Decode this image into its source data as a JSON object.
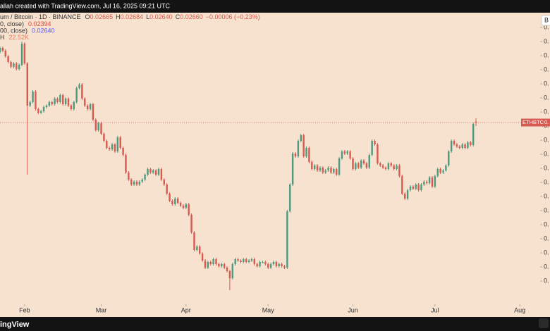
{
  "topbar": "allah created with TradingView.com, Jul 16, 2025 09:21 UTC",
  "legend": {
    "symbol": "um / Bitcoin · 1D · BINANCE",
    "ohlc": [
      {
        "label": "O",
        "value": "0.02665"
      },
      {
        "label": "H",
        "value": "0.02684"
      },
      {
        "label": "L",
        "value": "0.02640"
      },
      {
        "label": "C",
        "value": "0.02660"
      }
    ],
    "change": "−0.00006 (−0.23%)",
    "indicators": [
      {
        "name": "0, close)",
        "value": "0.02394",
        "color": "#e0463c"
      },
      {
        "name": "00, close)",
        "value": "0.02640",
        "color": "#5b5bf0"
      },
      {
        "name": "H",
        "value": "22.52K",
        "color": "#e8795a"
      }
    ]
  },
  "footer": "ingView",
  "chart_data": {
    "type": "candlestick",
    "up_color": "#4f9a7f",
    "down_color": "#d65a50",
    "currency_label": "B",
    "price_tag": "ETHBTC",
    "price_tag_value": "0.",
    "xlim": [
      0,
      192.8
    ],
    "xticks": [
      {
        "value": 9,
        "label": "Feb"
      },
      {
        "value": 37,
        "label": "Mar"
      },
      {
        "value": 68,
        "label": "Apr"
      },
      {
        "value": 98,
        "label": "May"
      },
      {
        "value": 129,
        "label": "Jun"
      },
      {
        "value": 159,
        "label": "Jul"
      },
      {
        "value": 190,
        "label": "Aug"
      }
    ],
    "ylim": [
      0.01628,
      0.03284
    ],
    "yticks": [
      {
        "value": 0.0176,
        "label": "0."
      },
      {
        "value": 0.0184,
        "label": "0."
      },
      {
        "value": 0.0192,
        "label": "0."
      },
      {
        "value": 0.02,
        "label": "0."
      },
      {
        "value": 0.0208,
        "label": "0."
      },
      {
        "value": 0.0216,
        "label": "0."
      },
      {
        "value": 0.0224,
        "label": "0."
      },
      {
        "value": 0.0232,
        "label": "0."
      },
      {
        "value": 0.024,
        "label": "0."
      },
      {
        "value": 0.0248,
        "label": "0."
      },
      {
        "value": 0.0256,
        "label": "0."
      },
      {
        "value": 0.0264,
        "label": "0."
      },
      {
        "value": 0.0272,
        "label": "0."
      },
      {
        "value": 0.028,
        "label": "0."
      },
      {
        "value": 0.0288,
        "label": "0."
      },
      {
        "value": 0.0296,
        "label": "0."
      },
      {
        "value": 0.0304,
        "label": "0."
      },
      {
        "value": 0.0312,
        "label": "0."
      },
      {
        "value": 0.032,
        "label": "0."
      }
    ],
    "open": [
      0.0306,
      0.03084,
      0.03068,
      0.03036,
      0.03004,
      0.02976,
      0.02996,
      0.02964,
      0.02988,
      0.03108,
      0.02996,
      0.02756,
      0.02776,
      0.02836,
      0.02736,
      0.02716,
      0.02724,
      0.02748,
      0.02756,
      0.02776,
      0.02764,
      0.02796,
      0.02776,
      0.02816,
      0.02764,
      0.02796,
      0.02756,
      0.02736,
      0.02776,
      0.02856,
      0.02876,
      0.02796,
      0.02756,
      0.02736,
      0.02764,
      0.02676,
      0.02616,
      0.02656,
      0.02596,
      0.02556,
      0.02516,
      0.02508,
      0.02536,
      0.02496,
      0.02576,
      0.02516,
      0.02476,
      0.02376,
      0.02336,
      0.02308,
      0.02324,
      0.02308,
      0.02324,
      0.02336,
      0.02364,
      0.02396,
      0.02376,
      0.02388,
      0.02364,
      0.02396,
      0.02336,
      0.02308,
      0.02256,
      0.02216,
      0.02196,
      0.02228,
      0.02204,
      0.02188,
      0.02176,
      0.02196,
      0.02136,
      0.02036,
      0.01936,
      0.01956,
      0.01916,
      0.01876,
      0.01836,
      0.01868,
      0.01856,
      0.01884,
      0.01856,
      0.01844,
      0.01856,
      0.01836,
      0.01816,
      0.01776,
      0.01856,
      0.01884,
      0.01876,
      0.01868,
      0.01884,
      0.01868,
      0.01876,
      0.01884,
      0.01856,
      0.01844,
      0.01868,
      0.01868,
      0.01856,
      0.01836,
      0.01856,
      0.01868,
      0.01844,
      0.01856,
      0.01844,
      0.01836,
      0.02156,
      0.02308,
      0.02484,
      0.02468,
      0.02556,
      0.02588,
      0.02468,
      0.02516,
      0.02436,
      0.02396,
      0.02416,
      0.02388,
      0.02404,
      0.02376,
      0.02388,
      0.02404,
      0.02376,
      0.02396,
      0.02364,
      0.02456,
      0.02496,
      0.02484,
      0.02496,
      0.02456,
      0.02396,
      0.02428,
      0.02404,
      0.02444,
      0.02428,
      0.02404,
      0.02476,
      0.02556,
      0.02536,
      0.02428,
      0.02416,
      0.02404,
      0.02396,
      0.02428,
      0.02416,
      0.02396,
      0.02416,
      0.02356,
      0.02256,
      0.02228,
      0.02276,
      0.02296,
      0.02284,
      0.02308,
      0.02276,
      0.02308,
      0.02324,
      0.02316,
      0.02348,
      0.02296,
      0.02356,
      0.02396,
      0.02376,
      0.02388,
      0.02416,
      0.02496,
      0.02556,
      0.02536,
      0.02524,
      0.02516,
      0.02536,
      0.02516,
      0.02548,
      0.02532,
      0.02665
    ],
    "high": [
      0.03092,
      0.03092,
      0.03076,
      0.03044,
      0.03012,
      0.03004,
      0.03004,
      0.02996,
      0.0312,
      0.03116,
      0.03004,
      0.02784,
      0.02844,
      0.02844,
      0.02744,
      0.02732,
      0.02756,
      0.02764,
      0.02784,
      0.02784,
      0.02804,
      0.02804,
      0.02824,
      0.02824,
      0.02804,
      0.02804,
      0.02764,
      0.02784,
      0.02864,
      0.02884,
      0.02884,
      0.02804,
      0.02764,
      0.02772,
      0.02772,
      0.02684,
      0.02664,
      0.02664,
      0.02604,
      0.02564,
      0.02524,
      0.02544,
      0.02544,
      0.02584,
      0.02584,
      0.02524,
      0.02484,
      0.02384,
      0.02344,
      0.02332,
      0.02332,
      0.02332,
      0.02344,
      0.02372,
      0.02404,
      0.02404,
      0.02396,
      0.02396,
      0.02404,
      0.02404,
      0.02344,
      0.02316,
      0.02264,
      0.02224,
      0.02236,
      0.02236,
      0.02212,
      0.02196,
      0.02204,
      0.02204,
      0.02144,
      0.02044,
      0.01964,
      0.01964,
      0.01924,
      0.01884,
      0.01876,
      0.01876,
      0.01892,
      0.01892,
      0.01864,
      0.01864,
      0.01864,
      0.01844,
      0.01824,
      0.01864,
      0.01892,
      0.01892,
      0.01884,
      0.01892,
      0.01892,
      0.01884,
      0.01892,
      0.01892,
      0.01864,
      0.01876,
      0.01876,
      0.01876,
      0.01864,
      0.01864,
      0.01876,
      0.01876,
      0.01864,
      0.01864,
      0.01852,
      0.02164,
      0.02316,
      0.02492,
      0.02492,
      0.02564,
      0.02596,
      0.02596,
      0.02524,
      0.02524,
      0.02444,
      0.02424,
      0.02424,
      0.02412,
      0.02412,
      0.02396,
      0.02412,
      0.02412,
      0.02404,
      0.02404,
      0.02464,
      0.02504,
      0.02504,
      0.02504,
      0.02504,
      0.02464,
      0.02436,
      0.02436,
      0.02452,
      0.02452,
      0.02436,
      0.02484,
      0.02564,
      0.02564,
      0.02544,
      0.02436,
      0.02424,
      0.02412,
      0.02436,
      0.02436,
      0.02424,
      0.02424,
      0.02424,
      0.02364,
      0.02264,
      0.02284,
      0.02304,
      0.02304,
      0.02316,
      0.02316,
      0.02316,
      0.02332,
      0.02332,
      0.02356,
      0.02356,
      0.02364,
      0.02404,
      0.02404,
      0.02396,
      0.02424,
      0.02504,
      0.02564,
      0.02564,
      0.02544,
      0.02532,
      0.02544,
      0.02544,
      0.02556,
      0.02556,
      0.0266,
      0.02684
    ],
    "low": [
      0.03052,
      0.0306,
      0.03028,
      0.02996,
      0.02968,
      0.02968,
      0.02956,
      0.02956,
      0.0298,
      0.02988,
      0.02364,
      0.02748,
      0.02768,
      0.02728,
      0.02708,
      0.02708,
      0.02716,
      0.0274,
      0.02748,
      0.02756,
      0.02756,
      0.02768,
      0.02768,
      0.02756,
      0.02756,
      0.02748,
      0.02728,
      0.02728,
      0.02768,
      0.02848,
      0.02788,
      0.02748,
      0.02728,
      0.02728,
      0.02668,
      0.02608,
      0.02608,
      0.02588,
      0.02548,
      0.02508,
      0.025,
      0.025,
      0.02488,
      0.02488,
      0.02508,
      0.02468,
      0.02368,
      0.02328,
      0.023,
      0.023,
      0.023,
      0.023,
      0.02316,
      0.02328,
      0.02356,
      0.02368,
      0.02368,
      0.02356,
      0.02356,
      0.02328,
      0.023,
      0.02248,
      0.02208,
      0.02188,
      0.02188,
      0.02196,
      0.0218,
      0.02168,
      0.02168,
      0.02128,
      0.02028,
      0.01928,
      0.01928,
      0.01908,
      0.01868,
      0.01828,
      0.01828,
      0.01848,
      0.01848,
      0.01848,
      0.01836,
      0.01836,
      0.01828,
      0.01808,
      0.01708,
      0.01768,
      0.01848,
      0.01868,
      0.0186,
      0.0186,
      0.0186,
      0.0186,
      0.01868,
      0.01848,
      0.01836,
      0.01836,
      0.0186,
      0.01848,
      0.01828,
      0.01828,
      0.01848,
      0.01836,
      0.01836,
      0.01836,
      0.01828,
      0.01828,
      0.02148,
      0.023,
      0.0246,
      0.0246,
      0.02548,
      0.0246,
      0.0246,
      0.02428,
      0.02388,
      0.02388,
      0.0238,
      0.0238,
      0.02368,
      0.02368,
      0.0238,
      0.02368,
      0.02368,
      0.02356,
      0.02356,
      0.02448,
      0.02476,
      0.02476,
      0.02448,
      0.02388,
      0.02388,
      0.02396,
      0.02396,
      0.0242,
      0.02396,
      0.02396,
      0.02468,
      0.02528,
      0.0242,
      0.02408,
      0.02396,
      0.02388,
      0.02388,
      0.02408,
      0.02388,
      0.02388,
      0.02348,
      0.02248,
      0.0222,
      0.0222,
      0.02268,
      0.02276,
      0.02276,
      0.02268,
      0.02268,
      0.023,
      0.02308,
      0.02308,
      0.02288,
      0.02288,
      0.02348,
      0.02368,
      0.02368,
      0.0238,
      0.02408,
      0.02488,
      0.02528,
      0.02516,
      0.02508,
      0.02508,
      0.02508,
      0.02508,
      0.02524,
      0.02524,
      0.0264
    ],
    "close": [
      0.03084,
      0.03068,
      0.03036,
      0.03004,
      0.02976,
      0.02996,
      0.02964,
      0.02988,
      0.03108,
      0.02996,
      0.02756,
      0.02776,
      0.02836,
      0.02736,
      0.02716,
      0.02724,
      0.02748,
      0.02756,
      0.02776,
      0.02764,
      0.02796,
      0.02776,
      0.02816,
      0.02764,
      0.02796,
      0.02756,
      0.02736,
      0.02776,
      0.02856,
      0.02876,
      0.02796,
      0.02756,
      0.02736,
      0.02764,
      0.02676,
      0.02616,
      0.02656,
      0.02596,
      0.02556,
      0.02516,
      0.02508,
      0.02536,
      0.02496,
      0.02576,
      0.02516,
      0.02476,
      0.02376,
      0.02336,
      0.02308,
      0.02324,
      0.02308,
      0.02324,
      0.02336,
      0.02364,
      0.02396,
      0.02376,
      0.02388,
      0.02364,
      0.02396,
      0.02336,
      0.02308,
      0.02256,
      0.02216,
      0.02196,
      0.02228,
      0.02204,
      0.02188,
      0.02176,
      0.02196,
      0.02136,
      0.02036,
      0.01936,
      0.01956,
      0.01916,
      0.01876,
      0.01836,
      0.01868,
      0.01856,
      0.01884,
      0.01856,
      0.01844,
      0.01856,
      0.01836,
      0.01816,
      0.01776,
      0.01856,
      0.01884,
      0.01876,
      0.01868,
      0.01884,
      0.01868,
      0.01876,
      0.01884,
      0.01856,
      0.01844,
      0.01868,
      0.01868,
      0.01856,
      0.01836,
      0.01856,
      0.01868,
      0.01844,
      0.01856,
      0.01844,
      0.01836,
      0.02156,
      0.02308,
      0.02484,
      0.02468,
      0.02556,
      0.02588,
      0.02468,
      0.02516,
      0.02436,
      0.02396,
      0.02416,
      0.02388,
      0.02404,
      0.02376,
      0.02388,
      0.02404,
      0.02376,
      0.02396,
      0.02364,
      0.02456,
      0.02496,
      0.02484,
      0.02496,
      0.02456,
      0.02396,
      0.02428,
      0.02404,
      0.02444,
      0.02428,
      0.02404,
      0.02476,
      0.02556,
      0.02536,
      0.02428,
      0.02416,
      0.02404,
      0.02396,
      0.02428,
      0.02416,
      0.02396,
      0.02416,
      0.02356,
      0.02256,
      0.02228,
      0.02276,
      0.02296,
      0.02284,
      0.02308,
      0.02276,
      0.02308,
      0.02324,
      0.02316,
      0.02348,
      0.02296,
      0.02356,
      0.02396,
      0.02376,
      0.02388,
      0.02416,
      0.02496,
      0.02556,
      0.02536,
      0.02524,
      0.02516,
      0.02536,
      0.02516,
      0.02548,
      0.02532,
      0.02652,
      0.0266
    ]
  }
}
